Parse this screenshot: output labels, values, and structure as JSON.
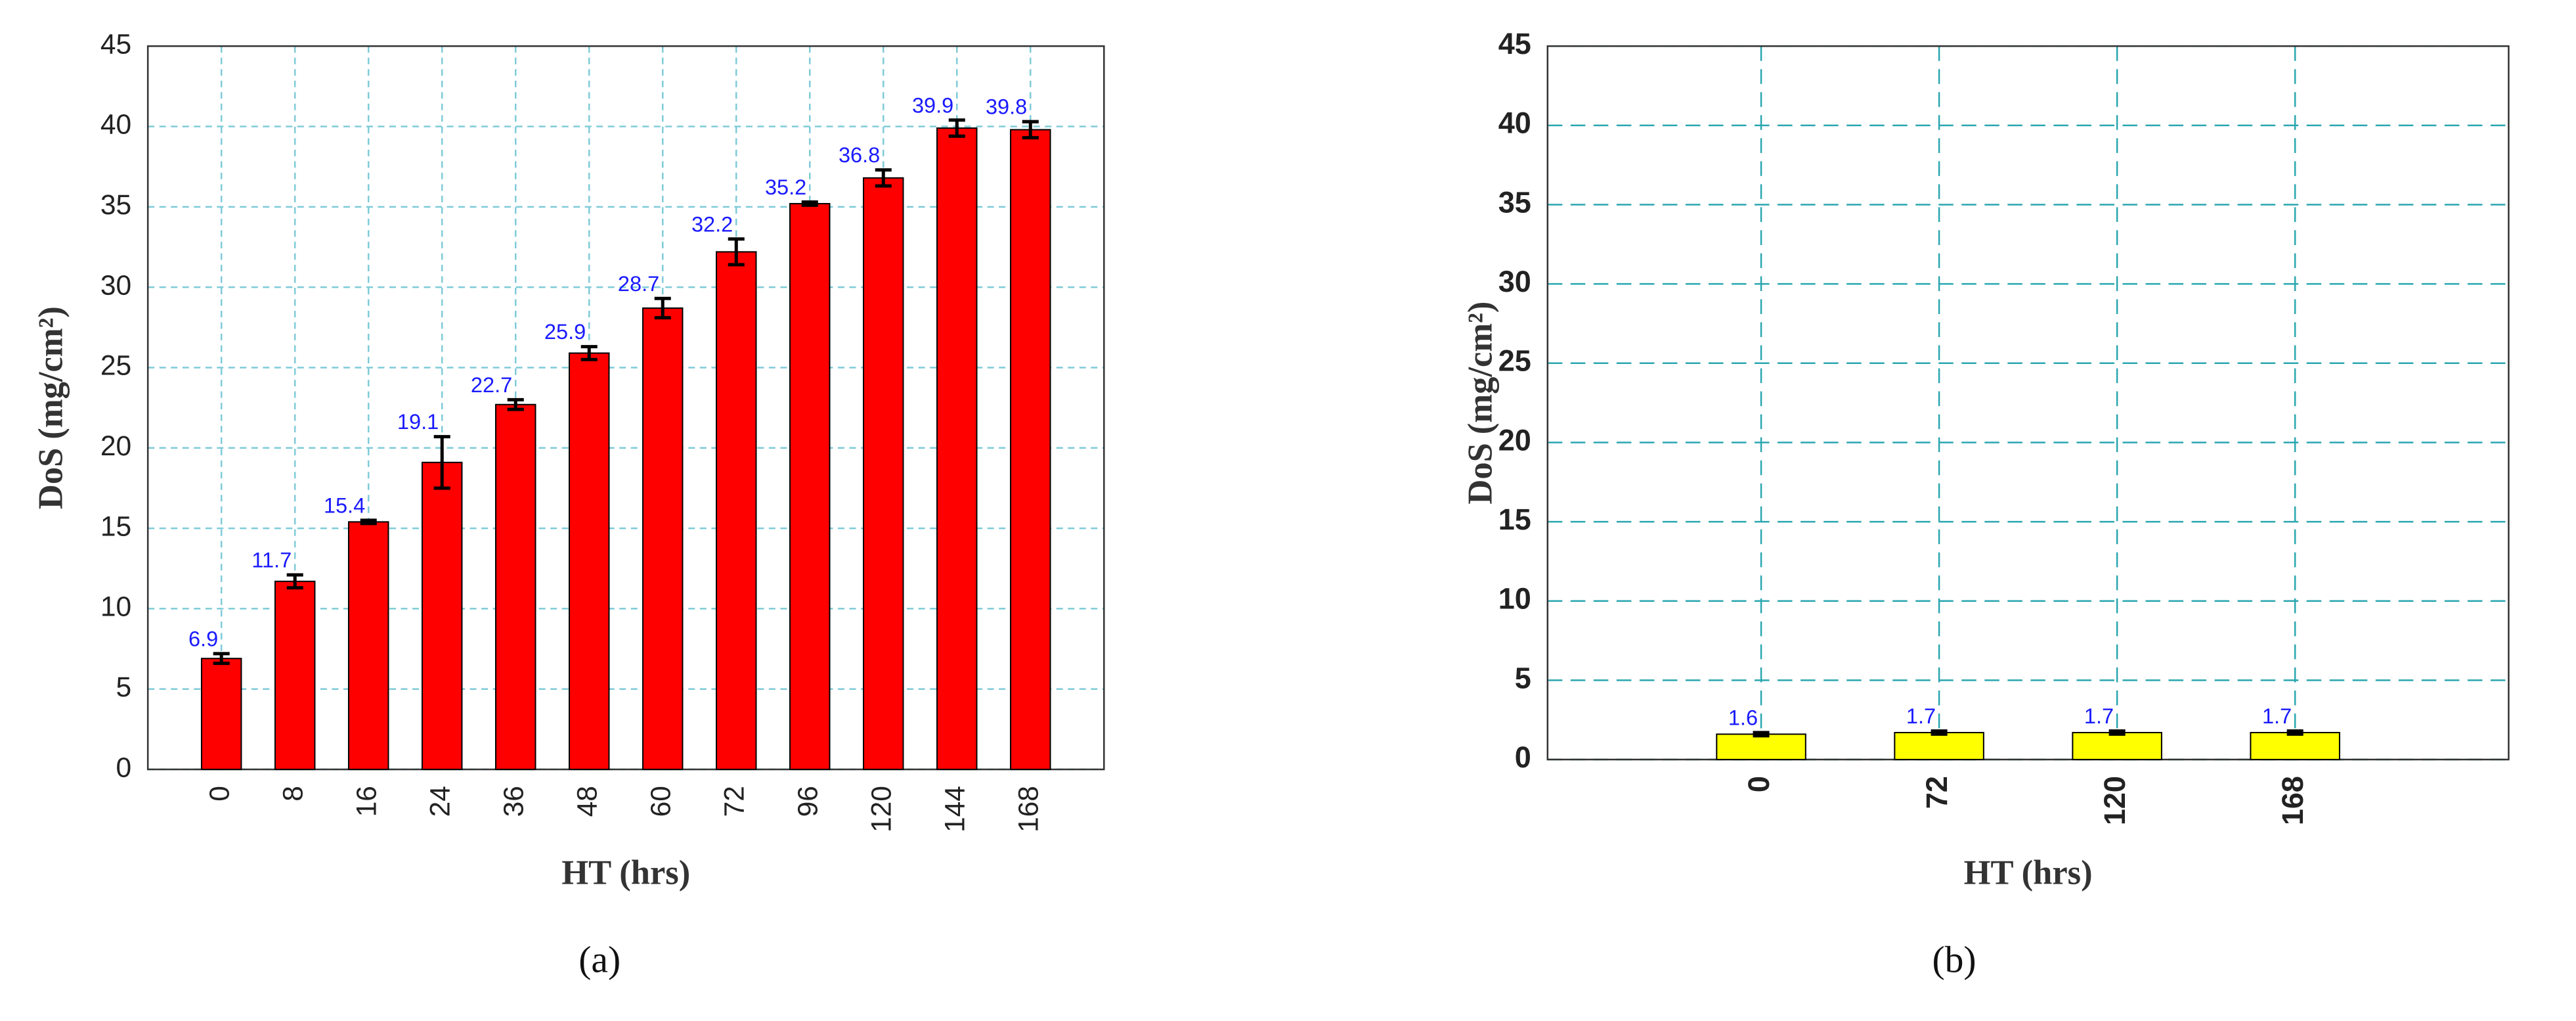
{
  "chart_data": [
    {
      "type": "bar",
      "caption": "(a)",
      "x_label": "HT (hrs)",
      "y_label": "DoS (mg/cm²)",
      "categories": [
        "0",
        "8",
        "16",
        "24",
        "36",
        "48",
        "60",
        "72",
        "96",
        "120",
        "144",
        "168"
      ],
      "values": [
        6.9,
        11.7,
        15.4,
        19.1,
        22.7,
        25.9,
        28.7,
        32.2,
        35.2,
        36.8,
        39.9,
        39.8
      ],
      "errors": [
        0.3,
        0.4,
        0.1,
        1.6,
        0.3,
        0.4,
        0.6,
        0.8,
        0.1,
        0.5,
        0.5,
        0.5
      ],
      "color": "#ff0000",
      "ylim": [
        0,
        45
      ],
      "yticks": [
        0,
        5,
        10,
        15,
        20,
        25,
        30,
        35,
        40,
        45
      ],
      "grid": true
    },
    {
      "type": "bar",
      "caption": "(b)",
      "x_label": "HT (hrs)",
      "y_label": "DoS (mg/cm²)",
      "categories": [
        "0",
        "72",
        "120",
        "168"
      ],
      "values": [
        1.6,
        1.7,
        1.7,
        1.7
      ],
      "errors": [
        0.1,
        0.1,
        0.1,
        0.1
      ],
      "color": "#ffff00",
      "ylim": [
        0,
        45
      ],
      "yticks": [
        0,
        5,
        10,
        15,
        20,
        25,
        30,
        35,
        40,
        45
      ],
      "grid": true
    }
  ]
}
